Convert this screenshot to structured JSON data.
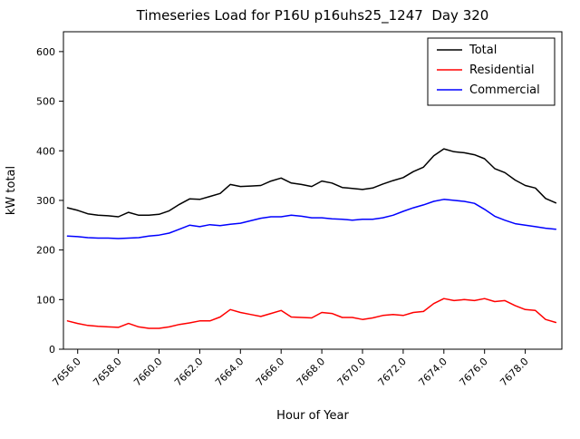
{
  "figure": {
    "background": "#ffffff",
    "axes_edge_color": "#000000"
  },
  "chart_data": {
    "type": "line",
    "title": "Timeseries Load for P16U p16uhs25_1247  Day 320",
    "xlabel": "Hour of Year",
    "ylabel": "kW total",
    "xlim": [
      7655.3,
      7679.8
    ],
    "ylim": [
      0,
      640
    ],
    "yticks": [
      0,
      100,
      200,
      300,
      400,
      500,
      600
    ],
    "ytick_labels": [
      "0",
      "100",
      "200",
      "300",
      "400",
      "500",
      "600"
    ],
    "xticks": [
      7656,
      7658,
      7660,
      7662,
      7664,
      7666,
      7668,
      7670,
      7672,
      7674,
      7676,
      7678
    ],
    "xtick_labels": [
      "7656.0",
      "7658.0",
      "7660.0",
      "7662.0",
      "7664.0",
      "7666.0",
      "7668.0",
      "7670.0",
      "7672.0",
      "7674.0",
      "7676.0",
      "7678.0"
    ],
    "grid": false,
    "legend": {
      "position": "upper right",
      "entries": [
        {
          "label": "Total",
          "color": "#000000"
        },
        {
          "label": "Residential",
          "color": "#ff0000"
        },
        {
          "label": "Commercial",
          "color": "#0000ff"
        }
      ]
    },
    "x": [
      7655.5,
      7656.0,
      7656.5,
      7657.0,
      7657.5,
      7658.0,
      7658.5,
      7659.0,
      7659.5,
      7660.0,
      7660.5,
      7661.0,
      7661.5,
      7662.0,
      7662.5,
      7663.0,
      7663.5,
      7664.0,
      7664.5,
      7665.0,
      7665.5,
      7666.0,
      7666.5,
      7667.0,
      7667.5,
      7668.0,
      7668.5,
      7669.0,
      7669.5,
      7670.0,
      7670.5,
      7671.0,
      7671.5,
      7672.0,
      7672.5,
      7673.0,
      7673.5,
      7674.0,
      7674.5,
      7675.0,
      7675.5,
      7676.0,
      7676.5,
      7677.0,
      7677.5,
      7678.0,
      7678.5,
      7679.0,
      7679.5
    ],
    "series": [
      {
        "name": "Total",
        "color": "#000000",
        "values": [
          285,
          280,
          273,
          270,
          269,
          267,
          276,
          270,
          270,
          272,
          279,
          292,
          303,
          302,
          308,
          314,
          332,
          328,
          329,
          330,
          339,
          345,
          335,
          332,
          328,
          339,
          335,
          326,
          324,
          322,
          325,
          333,
          340,
          346,
          358,
          367,
          390,
          404,
          398,
          396,
          392,
          384,
          364,
          356,
          341,
          330,
          325,
          304,
          295
        ]
      },
      {
        "name": "Residential",
        "color": "#ff0000",
        "values": [
          57,
          52,
          48,
          46,
          45,
          44,
          52,
          45,
          42,
          42,
          45,
          50,
          53,
          57,
          57,
          65,
          80,
          74,
          70,
          66,
          72,
          78,
          65,
          64,
          63,
          74,
          72,
          64,
          64,
          60,
          63,
          68,
          70,
          68,
          74,
          76,
          92,
          102,
          98,
          100,
          98,
          102,
          96,
          98,
          88,
          80,
          78,
          60,
          54
        ]
      },
      {
        "name": "Commercial",
        "color": "#0000ff",
        "values": [
          228,
          227,
          225,
          224,
          224,
          223,
          224,
          225,
          228,
          230,
          234,
          242,
          250,
          247,
          251,
          249,
          252,
          254,
          259,
          264,
          267,
          267,
          270,
          268,
          265,
          265,
          263,
          262,
          260,
          262,
          262,
          265,
          270,
          278,
          285,
          291,
          298,
          302,
          300,
          298,
          294,
          282,
          268,
          260,
          253,
          250,
          247,
          244,
          242
        ]
      }
    ]
  }
}
